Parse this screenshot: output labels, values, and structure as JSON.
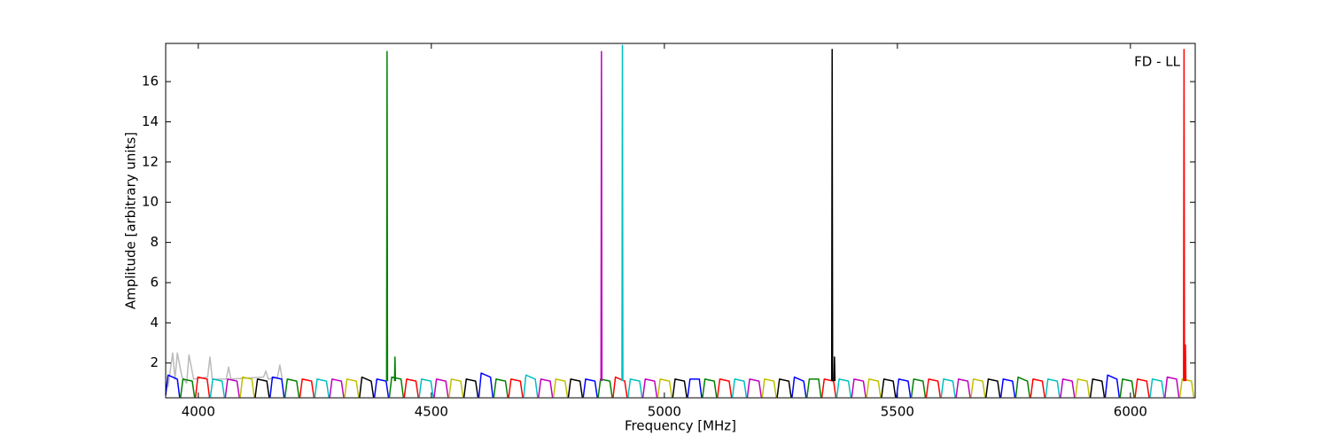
{
  "chart_data": {
    "type": "line",
    "annotation": "FD - LL",
    "xlabel": "Frequency [MHz]",
    "ylabel": "Amplitude [arbitrary units]",
    "xlim": [
      3930,
      6139
    ],
    "ylim": [
      0.27,
      17.9
    ],
    "xticks": [
      4000,
      4500,
      5000,
      5500,
      6000
    ],
    "yticks": [
      2,
      4,
      6,
      8,
      10,
      12,
      14,
      16
    ],
    "series": [
      {
        "color": "#bbbbbb",
        "x": [
          3935,
          3945,
          3950,
          3955,
          3965,
          3975,
          3980,
          3990,
          4020,
          4025,
          4030,
          4060,
          4065,
          4070,
          4140,
          4145,
          4150,
          4170,
          4175,
          4180
        ],
        "values": [
          0.8,
          2.5,
          1.2,
          2.5,
          1.3,
          1.0,
          2.4,
          1.2,
          1.3,
          2.3,
          1.2,
          1.2,
          1.8,
          1.2,
          1.3,
          1.6,
          1.2,
          1.3,
          1.9,
          1.2
        ]
      },
      {
        "color": "#0000ff",
        "x": [
          3930,
          3935,
          3955,
          3960,
          3961,
          4154,
          4159,
          4179,
          4184,
          4185,
          4378,
          4383,
          4403,
          4408,
          4409,
          4602,
          4607,
          4627,
          4632,
          4633,
          4826,
          4831,
          4851,
          4856,
          4857,
          5050,
          5055,
          5075,
          5080,
          5081,
          5274,
          5279,
          5299,
          5304,
          5305,
          5498,
          5503,
          5523,
          5528,
          5529,
          5722,
          5727,
          5747,
          5752,
          5753,
          5946,
          5951,
          5971,
          5976
        ],
        "values": [
          0.4,
          1.4,
          1.2,
          0.3,
          null,
          0.3,
          1.3,
          1.2,
          0.3,
          null,
          0.3,
          1.2,
          1.1,
          0.3,
          null,
          0.3,
          1.5,
          1.3,
          0.3,
          null,
          0.3,
          1.2,
          1.1,
          0.3,
          null,
          0.3,
          1.2,
          1.2,
          0.3,
          null,
          0.3,
          1.3,
          1.1,
          0.3,
          null,
          0.3,
          1.2,
          1.1,
          0.3,
          null,
          0.3,
          1.2,
          1.1,
          0.3,
          null,
          0.3,
          1.4,
          1.2,
          0.3
        ]
      },
      {
        "color": "#008000",
        "x": [
          3962,
          3967,
          3987,
          3992,
          3993,
          4186,
          4191,
          4211,
          4216,
          4217,
          4410,
          4415,
          4435,
          4440,
          4441,
          4634,
          4639,
          4659,
          4664,
          4665,
          4858,
          4863,
          4883,
          4888,
          4889,
          5082,
          5087,
          5107,
          5112,
          5113,
          5306,
          5311,
          5331,
          5336,
          5337,
          5530,
          5535,
          5555,
          5560,
          5561,
          5754,
          5759,
          5779,
          5784,
          5785,
          5978,
          5983,
          6003,
          6008
        ],
        "values": [
          0.3,
          1.2,
          1.1,
          0.3,
          null,
          0.3,
          1.2,
          1.1,
          0.3,
          null,
          0.3,
          1.3,
          1.2,
          0.3,
          null,
          0.3,
          1.2,
          1.1,
          0.3,
          null,
          0.3,
          1.2,
          1.1,
          0.3,
          null,
          0.3,
          1.2,
          1.1,
          0.3,
          null,
          0.3,
          1.2,
          1.2,
          0.3,
          null,
          0.3,
          1.2,
          1.1,
          0.3,
          null,
          0.3,
          1.3,
          1.1,
          0.3,
          null,
          0.3,
          1.2,
          1.1,
          0.3
        ]
      },
      {
        "color": "#ff0000",
        "x": [
          3994,
          3999,
          4019,
          4024,
          4025,
          4218,
          4223,
          4243,
          4248,
          4249,
          4442,
          4447,
          4467,
          4472,
          4473,
          4666,
          4671,
          4691,
          4696,
          4697,
          4890,
          4895,
          4915,
          4920,
          4921,
          5114,
          5119,
          5139,
          5144,
          5145,
          5338,
          5343,
          5363,
          5368,
          5369,
          5562,
          5567,
          5587,
          5592,
          5593,
          5786,
          5791,
          5811,
          5816,
          5817,
          6010,
          6015,
          6035,
          6040
        ],
        "values": [
          0.3,
          1.3,
          1.2,
          0.3,
          null,
          0.3,
          1.2,
          1.1,
          0.3,
          null,
          0.3,
          1.2,
          1.1,
          0.3,
          null,
          0.3,
          1.2,
          1.1,
          0.3,
          null,
          0.3,
          1.3,
          1.1,
          0.3,
          null,
          0.3,
          1.2,
          1.1,
          0.3,
          null,
          0.3,
          1.2,
          1.1,
          0.3,
          null,
          0.3,
          1.2,
          1.1,
          0.3,
          null,
          0.3,
          1.2,
          1.1,
          0.3,
          null,
          0.3,
          1.2,
          1.1,
          0.3
        ]
      },
      {
        "color": "#00bfbf",
        "x": [
          4026,
          4031,
          4051,
          4056,
          4057,
          4250,
          4255,
          4275,
          4280,
          4281,
          4474,
          4479,
          4499,
          4504,
          4505,
          4698,
          4703,
          4723,
          4728,
          4729,
          4922,
          4927,
          4947,
          4952,
          4953,
          5146,
          5151,
          5171,
          5176,
          5177,
          5370,
          5375,
          5395,
          5400,
          5401,
          5594,
          5599,
          5619,
          5624,
          5625,
          5818,
          5823,
          5843,
          5848,
          5849,
          6042,
          6047,
          6067,
          6072
        ],
        "values": [
          0.3,
          1.2,
          1.1,
          0.3,
          null,
          0.3,
          1.2,
          1.1,
          0.3,
          null,
          0.3,
          1.2,
          1.1,
          0.3,
          null,
          0.3,
          1.4,
          1.2,
          0.3,
          null,
          0.3,
          1.2,
          1.1,
          0.3,
          null,
          0.3,
          1.2,
          1.1,
          0.3,
          null,
          0.3,
          1.2,
          1.1,
          0.3,
          null,
          0.3,
          1.2,
          1.1,
          0.3,
          null,
          0.3,
          1.2,
          1.1,
          0.3,
          null,
          0.3,
          1.2,
          1.1,
          0.3
        ]
      },
      {
        "color": "#bf00bf",
        "x": [
          4058,
          4063,
          4083,
          4088,
          4089,
          4282,
          4287,
          4307,
          4312,
          4313,
          4506,
          4511,
          4531,
          4536,
          4537,
          4730,
          4735,
          4755,
          4760,
          4761,
          4954,
          4959,
          4979,
          4984,
          4985,
          5178,
          5183,
          5203,
          5208,
          5209,
          5402,
          5407,
          5427,
          5432,
          5433,
          5626,
          5631,
          5651,
          5656,
          5657,
          5850,
          5855,
          5875,
          5880,
          5881,
          6074,
          6079,
          6099,
          6104
        ],
        "values": [
          0.3,
          1.2,
          1.1,
          0.3,
          null,
          0.3,
          1.2,
          1.1,
          0.3,
          null,
          0.3,
          1.2,
          1.1,
          0.3,
          null,
          0.3,
          1.2,
          1.1,
          0.3,
          null,
          0.3,
          1.2,
          1.1,
          0.3,
          null,
          0.3,
          1.2,
          1.1,
          0.3,
          null,
          0.3,
          1.2,
          1.1,
          0.3,
          null,
          0.3,
          1.2,
          1.1,
          0.3,
          null,
          0.3,
          1.2,
          1.1,
          0.3,
          null,
          0.3,
          1.3,
          1.2,
          0.3
        ]
      },
      {
        "color": "#bfbf00",
        "x": [
          4090,
          4095,
          4115,
          4120,
          4121,
          4314,
          4319,
          4339,
          4344,
          4345,
          4538,
          4543,
          4563,
          4568,
          4569,
          4762,
          4767,
          4787,
          4792,
          4793,
          4986,
          4991,
          5011,
          5016,
          5017,
          5210,
          5215,
          5235,
          5240,
          5241,
          5434,
          5439,
          5459,
          5464,
          5465,
          5658,
          5663,
          5683,
          5688,
          5689,
          5882,
          5887,
          5907,
          5912,
          5913,
          6106,
          6111,
          6131,
          6136
        ],
        "values": [
          0.3,
          1.3,
          1.2,
          0.3,
          null,
          0.3,
          1.2,
          1.1,
          0.3,
          null,
          0.3,
          1.2,
          1.1,
          0.3,
          null,
          0.3,
          1.2,
          1.1,
          0.3,
          null,
          0.3,
          1.2,
          1.1,
          0.3,
          null,
          0.3,
          1.2,
          1.1,
          0.3,
          null,
          0.3,
          1.2,
          1.1,
          0.3,
          null,
          0.3,
          1.2,
          1.1,
          0.3,
          null,
          0.3,
          1.2,
          1.1,
          0.3,
          null,
          0.3,
          1.2,
          1.1,
          0.3
        ]
      },
      {
        "color": "#000000",
        "x": [
          4122,
          4127,
          4147,
          4152,
          4153,
          4346,
          4351,
          4371,
          4376,
          4377,
          4570,
          4575,
          4595,
          4600,
          4601,
          4794,
          4799,
          4819,
          4824,
          4825,
          5018,
          5023,
          5043,
          5048,
          5049,
          5242,
          5247,
          5267,
          5272,
          5273,
          5466,
          5471,
          5491,
          5496,
          5497,
          5690,
          5695,
          5715,
          5720,
          5721,
          5914,
          5919,
          5939,
          5944
        ],
        "values": [
          0.3,
          1.2,
          1.1,
          0.3,
          null,
          0.3,
          1.3,
          1.1,
          0.3,
          null,
          0.3,
          1.2,
          1.1,
          0.3,
          null,
          0.3,
          1.2,
          1.1,
          0.3,
          null,
          0.3,
          1.2,
          1.1,
          0.3,
          null,
          0.3,
          1.2,
          1.1,
          0.3,
          null,
          0.3,
          1.2,
          1.1,
          0.3,
          null,
          0.3,
          1.2,
          1.1,
          0.3,
          null,
          0.3,
          1.2,
          1.1,
          0.3
        ]
      },
      {
        "color": "#008000",
        "x": [
          4404,
          4405,
          4406
        ],
        "values": [
          1.1,
          17.5,
          1.1
        ]
      },
      {
        "color": "#008000",
        "x": [
          4421,
          4422,
          4423
        ],
        "values": [
          1.1,
          2.3,
          1.1
        ]
      },
      {
        "color": "#bf00bf",
        "x": [
          4864,
          4865,
          4866
        ],
        "values": [
          1.1,
          17.5,
          1.1
        ]
      },
      {
        "color": "#00bfbf",
        "x": [
          4909,
          4910,
          4911
        ],
        "values": [
          1.1,
          17.8,
          1.1
        ]
      },
      {
        "color": "#000000",
        "x": [
          5359,
          5360,
          5361
        ],
        "values": [
          1.1,
          17.6,
          1.1
        ]
      },
      {
        "color": "#000000",
        "x": [
          5364,
          5365,
          5366
        ],
        "values": [
          1.1,
          2.3,
          1.1
        ]
      },
      {
        "color": "#ff0000",
        "x": [
          6114,
          6115,
          6116
        ],
        "values": [
          1.1,
          17.6,
          1.1
        ]
      },
      {
        "color": "#ff0000",
        "x": [
          6117,
          6118,
          6119
        ],
        "values": [
          1.1,
          2.9,
          1.1
        ]
      }
    ]
  }
}
